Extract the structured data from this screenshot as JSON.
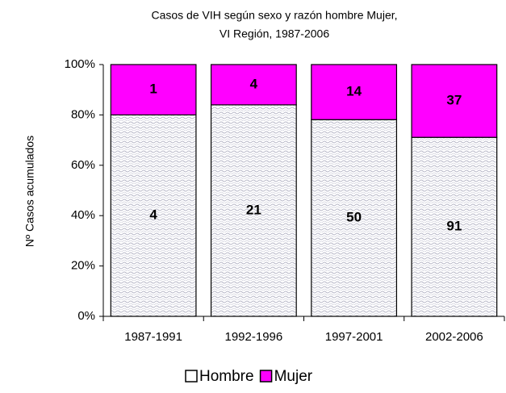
{
  "chart_data": {
    "type": "stacked_percent_bar",
    "title": [
      "Casos de VIH según sexo y razón hombre Mujer,",
      "VI Región, 1987-2006"
    ],
    "y_label": "Nº Casos acumulados",
    "categories": [
      "1987-1991",
      "1992-1996",
      "1997-2001",
      "2002-2006"
    ],
    "series": [
      {
        "name": "Hombre",
        "color": "#ffffff",
        "values": [
          4,
          21,
          50,
          91
        ]
      },
      {
        "name": "Mujer",
        "color": "#ff00ff",
        "values": [
          1,
          4,
          14,
          37
        ]
      }
    ],
    "ylim": [
      0,
      100
    ],
    "yticks": [
      {
        "value": 0,
        "label": "0%"
      },
      {
        "value": 20,
        "label": "20%"
      },
      {
        "value": 40,
        "label": "40%"
      },
      {
        "value": 60,
        "label": "60%"
      },
      {
        "value": 80,
        "label": "80%"
      },
      {
        "value": 100,
        "label": "100%"
      }
    ],
    "legend": "bottom"
  }
}
